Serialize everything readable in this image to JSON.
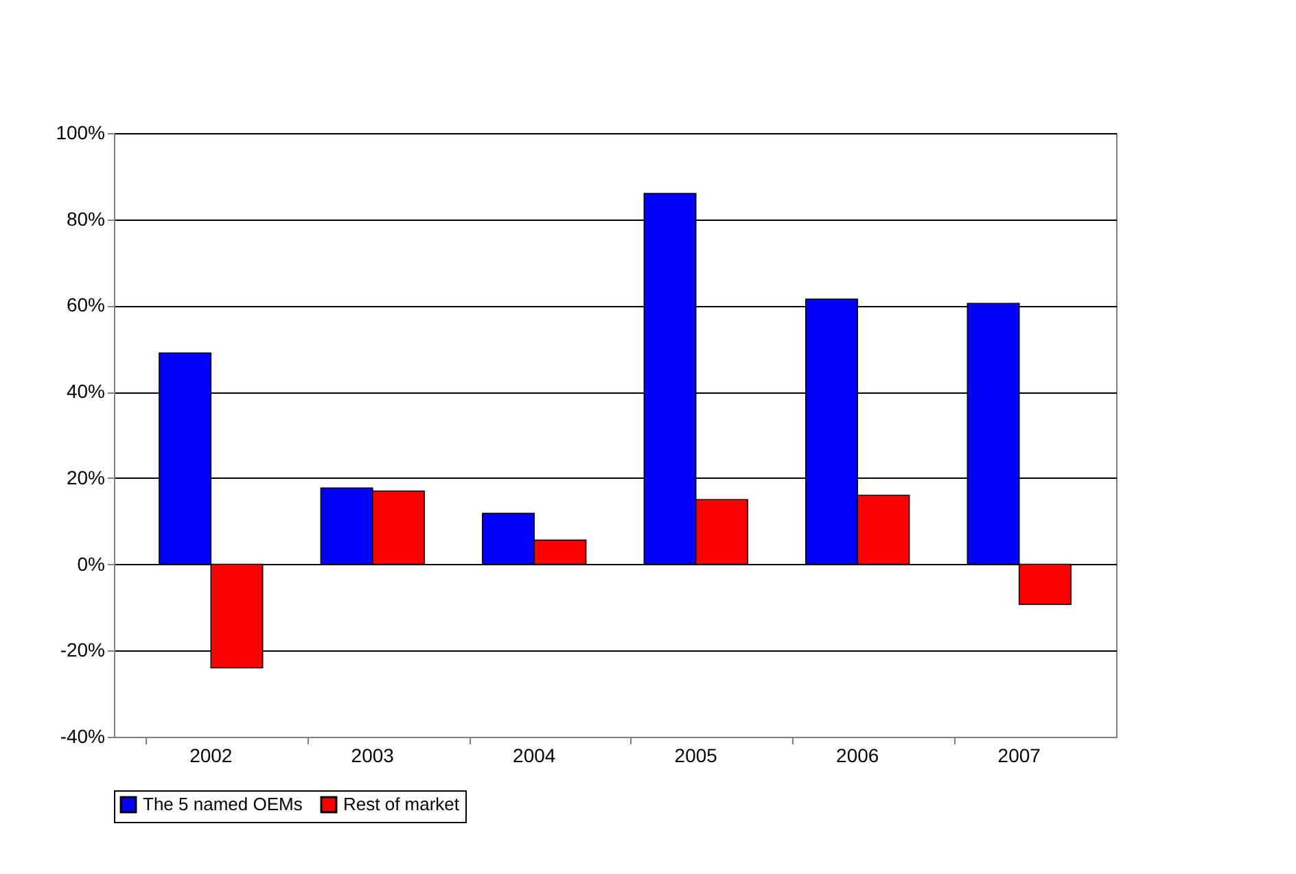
{
  "chart_data": {
    "type": "bar",
    "categories": [
      "2002",
      "2003",
      "2004",
      "2005",
      "2006",
      "2007"
    ],
    "series": [
      {
        "name": "The 5 named OEMs",
        "color": "#0000ff",
        "values": [
          49,
          17.7,
          11.8,
          86,
          61.5,
          60.5
        ]
      },
      {
        "name": "Rest of market",
        "color": "#ff0000",
        "values": [
          -24,
          17,
          5.6,
          15,
          16,
          -9.3
        ]
      }
    ],
    "ylim": [
      -40,
      100
    ],
    "yticks": [
      {
        "value": -40,
        "label": "-40%"
      },
      {
        "value": -20,
        "label": "-20%"
      },
      {
        "value": 0,
        "label": "0%"
      },
      {
        "value": 20,
        "label": "20%"
      },
      {
        "value": 40,
        "label": "40%"
      },
      {
        "value": 60,
        "label": "60%"
      },
      {
        "value": 80,
        "label": "80%"
      },
      {
        "value": 100,
        "label": "100%"
      }
    ],
    "grid": "y",
    "legend": "bottom"
  }
}
